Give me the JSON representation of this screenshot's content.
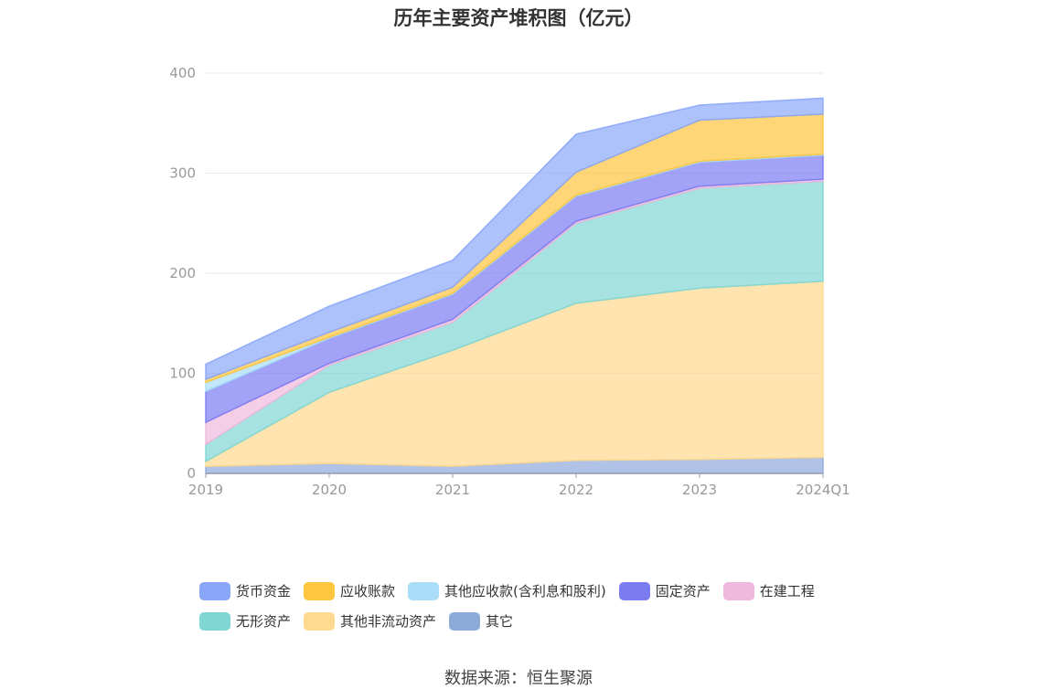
{
  "title": "历年主要资产堆积图（亿元）",
  "source": "数据来源：恒生聚源",
  "chart_data": {
    "type": "area",
    "stacked": true,
    "title": "历年主要资产堆积图（亿元）",
    "categories": [
      "2019",
      "2020",
      "2021",
      "2022",
      "2023",
      "2024Q1"
    ],
    "ylim": [
      0,
      400
    ],
    "yticks": [
      0,
      100,
      200,
      300,
      400
    ],
    "grid": true,
    "legend_position": "bottom",
    "series": [
      {
        "name": "其它",
        "color": "#8eaadb",
        "values": [
          7,
          10,
          7,
          13,
          14,
          16
        ]
      },
      {
        "name": "其他非流动资产",
        "color": "#ffd98f",
        "values": [
          5,
          71,
          116,
          157,
          171,
          176
        ]
      },
      {
        "name": "无形资产",
        "color": "#7fd6d4",
        "values": [
          17,
          27,
          28,
          80,
          100,
          100
        ]
      },
      {
        "name": "在建工程",
        "color": "#f0b8dc",
        "values": [
          22,
          2,
          3,
          2,
          2,
          2
        ]
      },
      {
        "name": "固定资产",
        "color": "#7b7cf2",
        "values": [
          31,
          25,
          25,
          25,
          24,
          24
        ]
      },
      {
        "name": "其他应收款(含利息和股利)",
        "color": "#a9ddf8",
        "values": [
          9,
          1,
          1,
          1,
          1,
          1
        ]
      },
      {
        "name": "应收账款",
        "color": "#fec53e",
        "values": [
          3,
          5,
          6,
          23,
          41,
          40
        ]
      },
      {
        "name": "货币资金",
        "color": "#8aa6f8",
        "values": [
          15,
          26,
          27,
          38,
          15,
          16
        ]
      }
    ],
    "legend_order": [
      "货币资金",
      "应收账款",
      "其他应收款(含利息和股利)",
      "固定资产",
      "在建工程",
      "无形资产",
      "其他非流动资产",
      "其它"
    ]
  }
}
